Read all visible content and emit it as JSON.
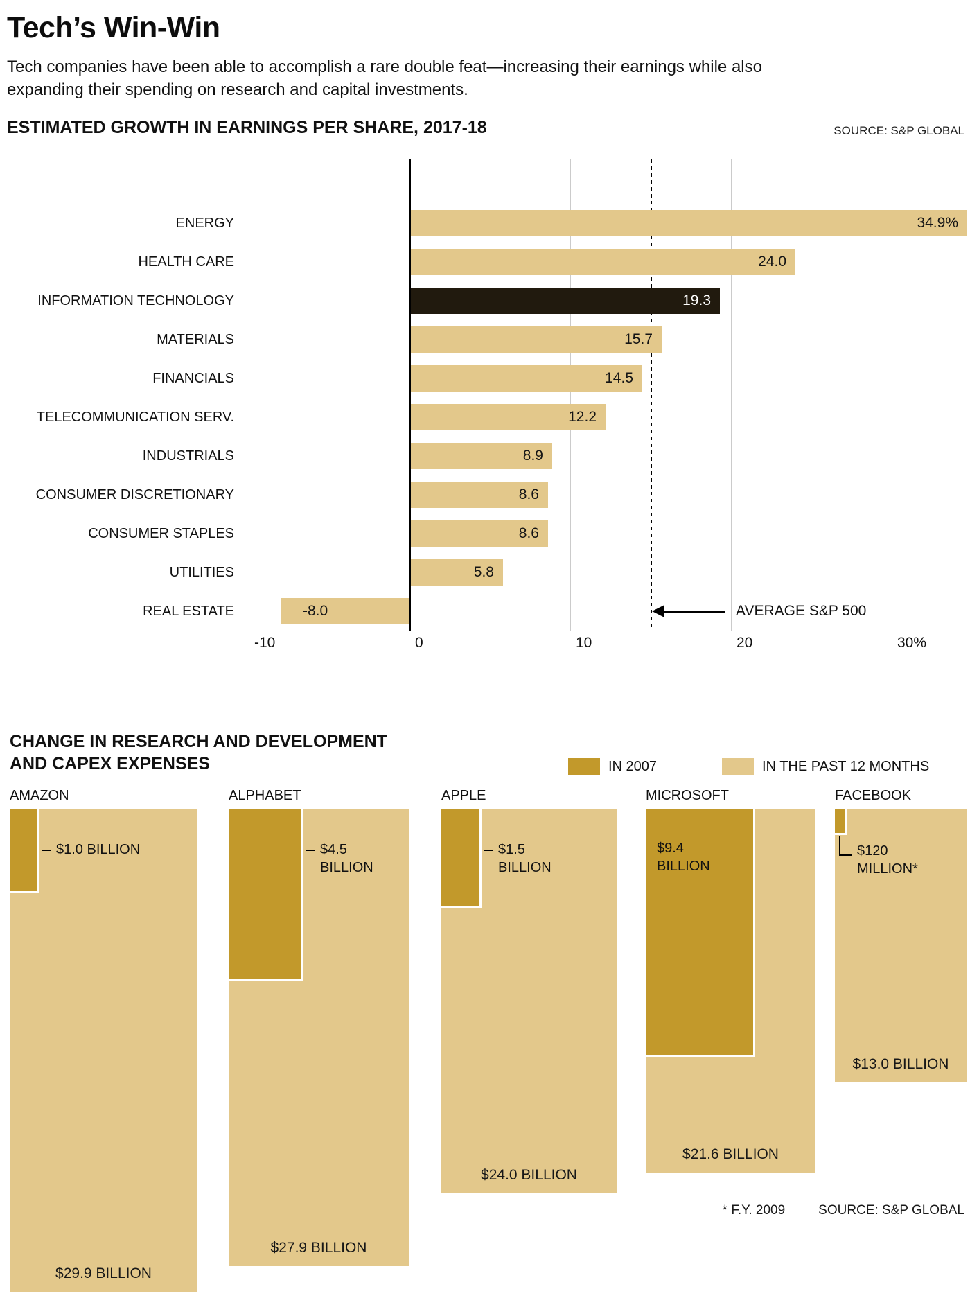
{
  "page": {
    "title": "Tech’s Win-Win",
    "subtitle": "Tech companies have been able to accomplish a rare double feat—increasing their earnings while also expanding their spending on research and capital investments."
  },
  "eps_chart": {
    "heading": "ESTIMATED GROWTH IN EARNINGS PER SHARE, 2017-18",
    "source": "SOURCE: S&P GLOBAL",
    "average_label": "AVERAGE S&P 500"
  },
  "capex_chart": {
    "heading_line1": "CHANGE IN RESEARCH AND DEVELOPMENT",
    "heading_line2": "AND CAPEX EXPENSES",
    "legend": [
      {
        "label": "IN 2007",
        "color": "#c2992b"
      },
      {
        "label": "IN THE PAST 12 MONTHS",
        "color": "#e3c88b"
      }
    ],
    "footnote": "* F.Y. 2009",
    "source": "SOURCE: S&P GLOBAL"
  },
  "chart_data": [
    {
      "type": "bar",
      "orientation": "horizontal",
      "title": "ESTIMATED GROWTH IN EARNINGS PER SHARE, 2017-18",
      "categories": [
        "ENERGY",
        "HEALTH CARE",
        "INFORMATION TECHNOLOGY",
        "MATERIALS",
        "FINANCIALS",
        "TELECOMMUNICATION SERV.",
        "INDUSTRIALS",
        "CONSUMER DISCRETIONARY",
        "CONSUMER STAPLES",
        "UTILITIES",
        "REAL ESTATE"
      ],
      "values": [
        34.9,
        24.0,
        19.3,
        15.7,
        14.5,
        12.2,
        8.9,
        8.6,
        8.6,
        5.8,
        -8.0
      ],
      "value_labels": [
        "34.9%",
        "24.0",
        "19.3",
        "15.7",
        "14.5",
        "12.2",
        "8.9",
        "8.6",
        "8.6",
        "5.8",
        "-8.0"
      ],
      "highlight_category": "INFORMATION TECHNOLOGY",
      "xlim": [
        -10,
        30
      ],
      "x_ticks": [
        -10,
        0,
        10,
        20,
        30
      ],
      "x_tick_labels": [
        "-10",
        "0",
        "10",
        "20",
        "30%"
      ],
      "average_line": 15.0,
      "average_label": "AVERAGE S&P 500",
      "unit": "percent",
      "grid": true,
      "colors": {
        "bar": "#e3c88b",
        "highlight": "#211a0e"
      }
    },
    {
      "type": "bar",
      "title": "CHANGE IN RESEARCH AND DEVELOPMENT AND CAPEX EXPENSES",
      "categories": [
        "AMAZON",
        "ALPHABET",
        "APPLE",
        "MICROSOFT",
        "FACEBOOK"
      ],
      "series": [
        {
          "name": "IN 2007",
          "values_billions": [
            1.0,
            4.5,
            1.5,
            9.4,
            0.12
          ],
          "labels": [
            "$1.0 BILLION",
            "$4.5 BILLION",
            "$1.5 BILLION",
            "$9.4 BILLION",
            "$120 MILLION*"
          ]
        },
        {
          "name": "IN THE PAST 12 MONTHS",
          "values_billions": [
            29.9,
            27.9,
            24.0,
            21.6,
            13.0
          ],
          "labels": [
            "$29.9 BILLION",
            "$27.9 BILLION",
            "$24.0 BILLION",
            "$21.6 BILLION",
            "$13.0 BILLION"
          ]
        }
      ],
      "footnote": "* F.Y. 2009",
      "legend_position": "top-right",
      "colors": {
        "in_2007": "#c2992b",
        "past_12_months": "#e3c88b"
      }
    }
  ]
}
